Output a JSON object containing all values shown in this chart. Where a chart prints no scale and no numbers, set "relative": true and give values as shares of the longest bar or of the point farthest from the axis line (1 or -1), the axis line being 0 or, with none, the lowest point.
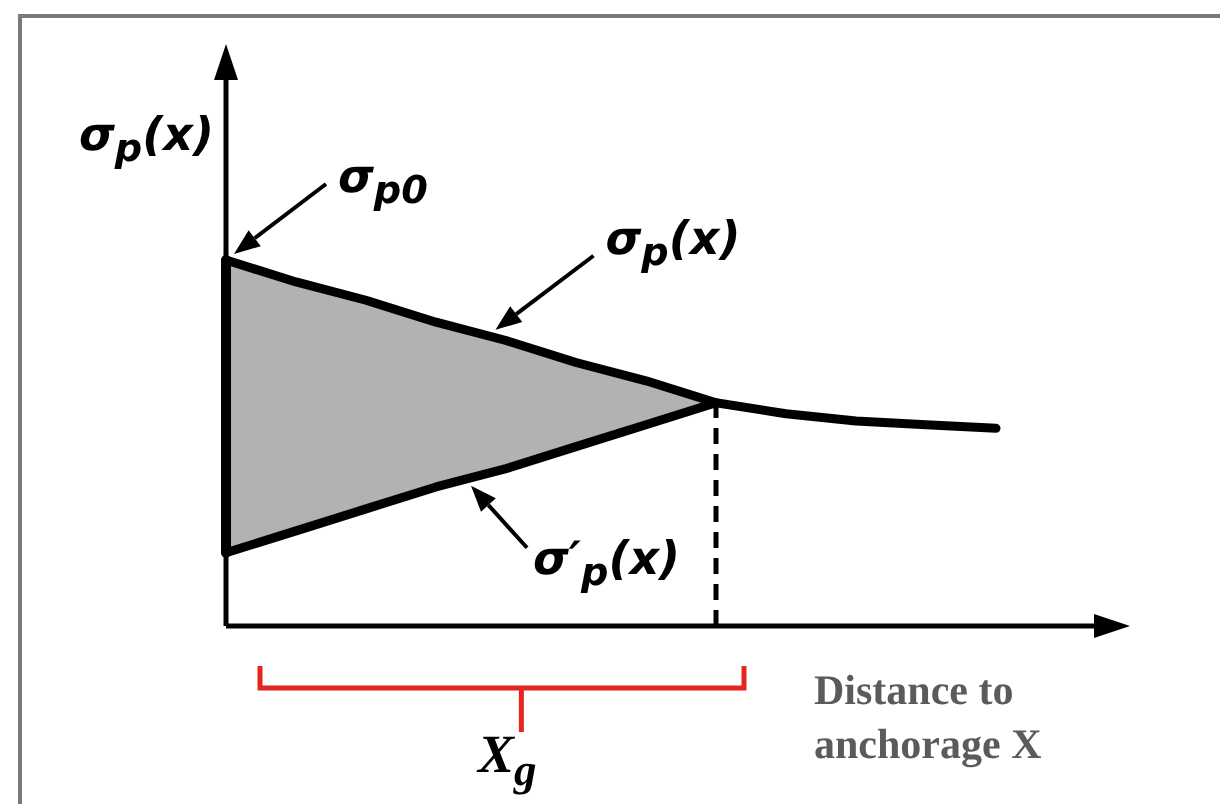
{
  "chart_data": {
    "type": "line",
    "relative": true,
    "tick_labels": false,
    "marker": "none",
    "ylabel": "σ$_{p}$(x)",
    "xlabel": "Distance to anchorage X",
    "categories": [
      null,
      null,
      null,
      null,
      null,
      null,
      null,
      null,
      null,
      null,
      null,
      null
    ],
    "series": [
      {
        "name": "σ$_{p}$(x)",
        "color": "#000000",
        "values": [
          1,
          0.94,
          0.89,
          0.83,
          0.78,
          0.72,
          0.67,
          0.61,
          0.58,
          0.56,
          0.55,
          0.54
        ]
      },
      {
        "name": "σ′$_{p}$(x)",
        "color": "#000000",
        "values": [
          0.2,
          0.26,
          0.32,
          0.38,
          0.43,
          0.49,
          0.55,
          0.61,
          null,
          null,
          null,
          null
        ],
        "lower": [
          0.2,
          0.26,
          0.32,
          0.38,
          0.43,
          0.49,
          0.55,
          0.61,
          null,
          null,
          null,
          null
        ],
        "upper": [
          1,
          0.94,
          0.89,
          0.83,
          0.78,
          0.72,
          0.67,
          0.61,
          null,
          null,
          null,
          null
        ]
      }
    ],
    "annotations": [
      "σ$_{p0}$",
      "X$_{g}$"
    ]
  }
}
